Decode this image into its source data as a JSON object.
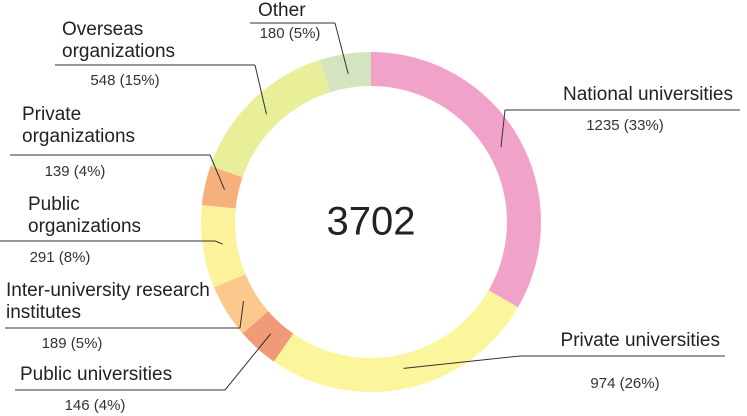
{
  "chart_data": {
    "type": "donut",
    "center_label": 3702,
    "categories": [
      "National universities",
      "Private universities",
      "Public universities",
      "Inter-university research institutes",
      "Public organizations",
      "Private organizations",
      "Overseas organizations",
      "Other"
    ],
    "values": [
      1235,
      974,
      146,
      189,
      291,
      139,
      548,
      180
    ],
    "value_labels": [
      "1235 (33%)",
      "974 (26%)",
      "146 (4%)",
      "189 (5%)",
      "291 (8%)",
      "139 (4%)",
      "548 (15%)",
      "180 (5%)"
    ],
    "colors": [
      "#f0a2c9",
      "#fbf59c",
      "#f09a78",
      "#fbc98b",
      "#fdf29c",
      "#f5b07d",
      "#e9ef99",
      "#d4e3c0"
    ]
  }
}
